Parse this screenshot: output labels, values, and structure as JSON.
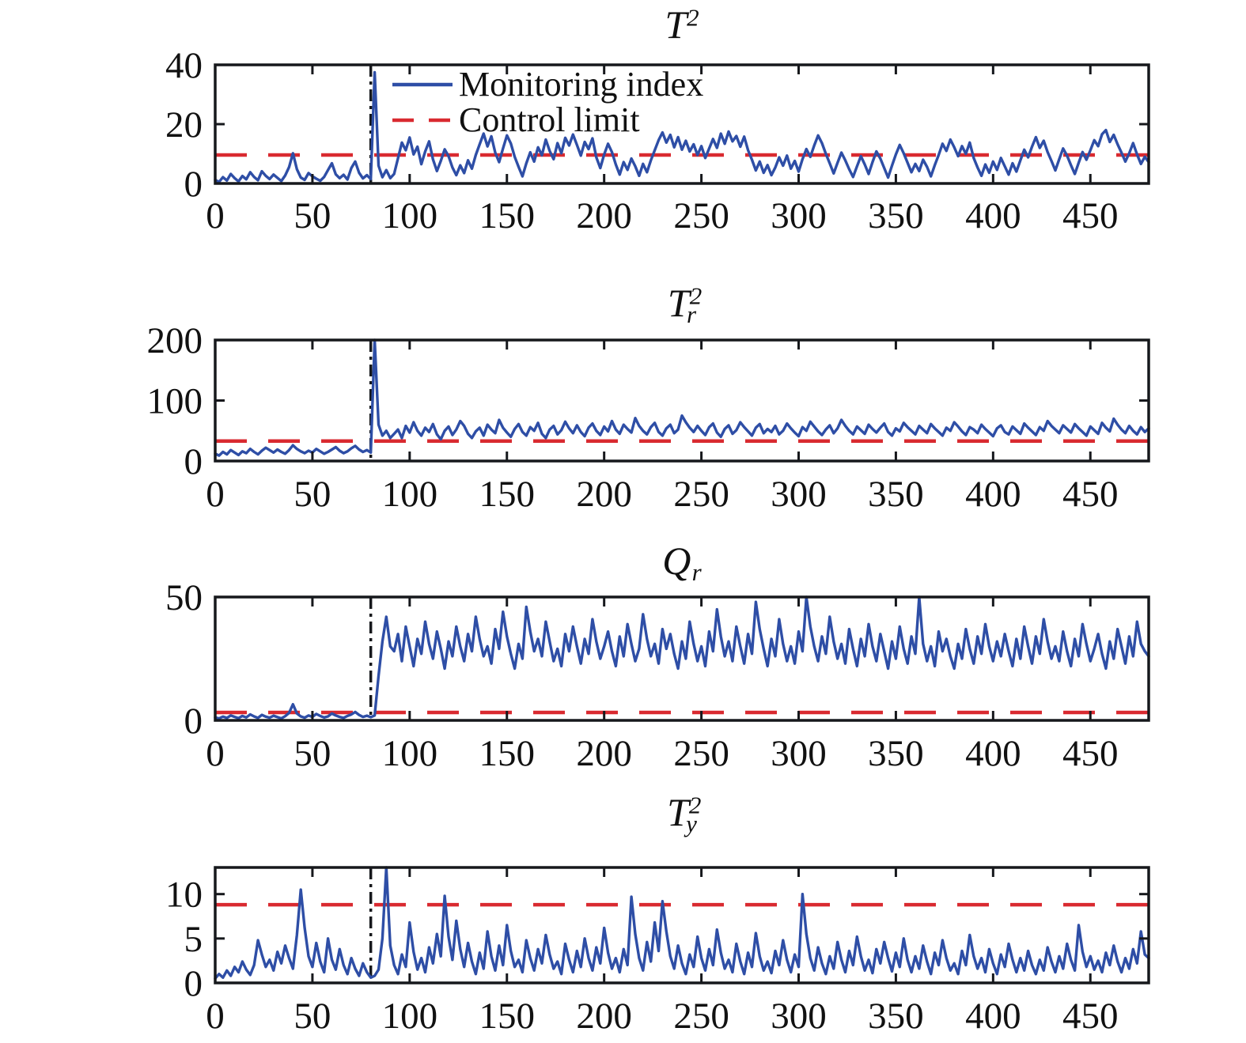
{
  "figure": {
    "background": "#ffffff"
  },
  "colors": {
    "series_blue": "#2e4ea6",
    "limit_red": "#d92a30",
    "axis_black": "#16181c",
    "tick_text": "#111111"
  },
  "legend": {
    "monitoring_label": "Monitoring index",
    "control_label": "Control limit"
  },
  "chart_data": [
    {
      "type": "line",
      "title": "T^2",
      "title_parts": {
        "base": "T",
        "sup": "2",
        "sub": ""
      },
      "xlabel": "",
      "ylabel": "",
      "x_range": [
        0,
        480
      ],
      "x_start": 0,
      "x_step": 2,
      "x_ticks": [
        0,
        50,
        100,
        150,
        200,
        250,
        300,
        350,
        400,
        450
      ],
      "ylim": [
        0,
        40
      ],
      "y_ticks": [
        0,
        20,
        40
      ],
      "control_limit": 9.6,
      "fault_line_x": 80,
      "series_name": "Monitoring index",
      "values": [
        1.2,
        0.5,
        2.1,
        1.0,
        3.2,
        1.8,
        0.7,
        2.5,
        1.4,
        3.8,
        2.2,
        1.1,
        4.1,
        2.6,
        1.5,
        3.0,
        1.9,
        0.8,
        2.7,
        5.5,
        10.2,
        4.8,
        2.0,
        1.2,
        3.5,
        2.4,
        1.6,
        0.9,
        2.2,
        4.5,
        6.8,
        3.1,
        1.8,
        2.9,
        1.3,
        5.2,
        7.4,
        3.6,
        1.7,
        2.8,
        1.5,
        37.5,
        6.0,
        2.1,
        4.5,
        1.8,
        3.2,
        8.5,
        13.8,
        11.2,
        15.5,
        9.8,
        12.4,
        6.5,
        10.8,
        14.2,
        8.1,
        4.2,
        7.6,
        11.5,
        9.2,
        5.4,
        2.8,
        6.1,
        3.5,
        7.8,
        5.0,
        9.6,
        13.2,
        16.8,
        12.5,
        15.9,
        10.4,
        7.2,
        11.8,
        16.2,
        13.5,
        9.0,
        5.6,
        2.4,
        6.8,
        10.5,
        7.4,
        12.2,
        9.5,
        14.8,
        11.0,
        8.2,
        13.6,
        10.2,
        15.4,
        12.8,
        16.5,
        13.0,
        9.4,
        14.0,
        11.6,
        15.2,
        8.8,
        5.2,
        9.8,
        13.4,
        10.6,
        6.4,
        3.0,
        7.2,
        4.6,
        8.4,
        5.8,
        2.6,
        6.6,
        3.8,
        7.8,
        11.2,
        14.6,
        17.2,
        13.8,
        16.4,
        12.2,
        15.6,
        11.4,
        14.4,
        10.8,
        13.2,
        9.6,
        12.6,
        8.6,
        11.8,
        15.0,
        12.0,
        16.8,
        13.4,
        17.5,
        14.2,
        16.0,
        12.4,
        15.8,
        11.2,
        8.0,
        4.4,
        7.4,
        3.6,
        6.2,
        2.8,
        5.4,
        8.8,
        6.0,
        9.4,
        5.0,
        7.6,
        4.0,
        8.2,
        11.6,
        9.0,
        12.8,
        16.2,
        13.6,
        10.0,
        6.8,
        3.4,
        7.0,
        10.4,
        7.8,
        4.8,
        2.2,
        5.8,
        9.2,
        6.4,
        3.2,
        7.2,
        10.8,
        8.4,
        5.2,
        2.0,
        6.0,
        9.8,
        13.0,
        10.2,
        7.0,
        3.8,
        6.6,
        4.2,
        8.0,
        5.6,
        2.4,
        6.2,
        9.6,
        13.4,
        11.0,
        14.8,
        12.2,
        9.2,
        12.6,
        10.0,
        13.8,
        8.6,
        5.4,
        2.6,
        6.4,
        3.6,
        7.4,
        4.6,
        8.6,
        5.8,
        3.0,
        6.8,
        4.0,
        7.8,
        11.4,
        8.8,
        12.4,
        15.6,
        12.0,
        14.4,
        10.6,
        7.6,
        4.4,
        8.2,
        11.8,
        9.4,
        6.2,
        3.2,
        7.0,
        10.6,
        8.0,
        11.2,
        14.6,
        12.6,
        16.6,
        18.0,
        14.0,
        16.4,
        13.2,
        10.4,
        7.4,
        10.2,
        13.6,
        9.8,
        6.6,
        9.0,
        7.2
      ]
    },
    {
      "type": "line",
      "title": "T_r^2",
      "title_parts": {
        "base": "T",
        "sup": "2",
        "sub": "r"
      },
      "xlabel": "",
      "ylabel": "",
      "x_range": [
        0,
        480
      ],
      "x_start": 0,
      "x_step": 2,
      "x_ticks": [
        0,
        50,
        100,
        150,
        200,
        250,
        300,
        350,
        400,
        450
      ],
      "ylim": [
        0,
        200
      ],
      "y_ticks": [
        0,
        100,
        200
      ],
      "control_limit": 33,
      "fault_line_x": 80,
      "series_name": "Monitoring index",
      "values": [
        12,
        9,
        15,
        11,
        18,
        14,
        10,
        16,
        13,
        20,
        15,
        11,
        17,
        22,
        18,
        14,
        19,
        15,
        12,
        18,
        26,
        20,
        16,
        13,
        17,
        14,
        20,
        16,
        12,
        15,
        19,
        23,
        17,
        13,
        16,
        21,
        25,
        19,
        15,
        18,
        14,
        200,
        60,
        42,
        50,
        38,
        45,
        52,
        38,
        58,
        47,
        64,
        50,
        42,
        55,
        48,
        61,
        44,
        36,
        50,
        57,
        43,
        52,
        66,
        58,
        45,
        38,
        49,
        55,
        42,
        60,
        52,
        46,
        68,
        55,
        47,
        40,
        53,
        61,
        48,
        42,
        56,
        50,
        63,
        45,
        38,
        52,
        58,
        44,
        51,
        65,
        54,
        46,
        59,
        48,
        41,
        55,
        62,
        50,
        43,
        57,
        49,
        66,
        52,
        45,
        60,
        53,
        47,
        71,
        58,
        50,
        44,
        56,
        63,
        48,
        42,
        54,
        60,
        46,
        52,
        75,
        64,
        55,
        48,
        58,
        50,
        43,
        56,
        62,
        47,
        40,
        53,
        59,
        45,
        51,
        64,
        56,
        49,
        42,
        55,
        61,
        46,
        53,
        48,
        58,
        44,
        50,
        62,
        54,
        47,
        41,
        56,
        50,
        65,
        57,
        49,
        43,
        52,
        59,
        46,
        54,
        68,
        58,
        50,
        44,
        57,
        51,
        45,
        60,
        53,
        47,
        55,
        62,
        48,
        42,
        54,
        49,
        63,
        56,
        50,
        44,
        58,
        52,
        46,
        61,
        54,
        48,
        42,
        55,
        50,
        64,
        57,
        49,
        43,
        56,
        52,
        46,
        60,
        53,
        47,
        41,
        54,
        59,
        48,
        44,
        57,
        51,
        45,
        62,
        55,
        49,
        43,
        56,
        50,
        66,
        58,
        52,
        46,
        59,
        53,
        47,
        61,
        54,
        48,
        42,
        57,
        51,
        45,
        63,
        55,
        49,
        70,
        60,
        52,
        46,
        58,
        50,
        44,
        56,
        48,
        54
      ]
    },
    {
      "type": "line",
      "title": "Q_r",
      "title_parts": {
        "base": "Q",
        "sup": "",
        "sub": "r"
      },
      "xlabel": "",
      "ylabel": "",
      "x_range": [
        0,
        480
      ],
      "x_start": 0,
      "x_step": 2,
      "x_ticks": [
        0,
        50,
        100,
        150,
        200,
        250,
        300,
        350,
        400,
        450
      ],
      "ylim": [
        0,
        50
      ],
      "y_ticks": [
        0,
        50
      ],
      "control_limit": 3.2,
      "fault_line_x": 80,
      "series_name": "Monitoring index",
      "values": [
        1.2,
        0.8,
        1.5,
        1.0,
        2.0,
        1.4,
        0.9,
        1.8,
        1.2,
        2.4,
        1.6,
        1.0,
        2.2,
        1.5,
        1.1,
        1.9,
        1.3,
        0.8,
        1.7,
        3.0,
        6.5,
        2.8,
        1.6,
        1.1,
        2.0,
        1.4,
        2.6,
        1.8,
        1.2,
        1.6,
        2.8,
        2.0,
        1.4,
        1.0,
        1.8,
        2.4,
        3.4,
        2.2,
        1.4,
        1.9,
        1.3,
        2.0,
        18,
        32,
        42,
        30,
        28,
        35,
        24,
        38,
        30,
        22,
        33,
        27,
        40,
        31,
        25,
        36,
        29,
        21,
        32,
        26,
        38,
        30,
        24,
        35,
        28,
        42,
        33,
        26,
        30,
        23,
        37,
        29,
        44,
        34,
        27,
        21,
        31,
        25,
        46,
        36,
        28,
        33,
        26,
        40,
        32,
        24,
        29,
        22,
        35,
        28,
        38,
        30,
        23,
        33,
        27,
        41,
        32,
        25,
        30,
        36,
        28,
        22,
        34,
        26,
        39,
        31,
        24,
        29,
        43,
        33,
        26,
        31,
        23,
        37,
        29,
        35,
        27,
        21,
        32,
        25,
        40,
        31,
        24,
        30,
        22,
        36,
        28,
        45,
        34,
        26,
        32,
        24,
        38,
        30,
        23,
        35,
        27,
        48,
        37,
        29,
        22,
        33,
        26,
        41,
        31,
        24,
        30,
        23,
        36,
        28,
        50,
        38,
        30,
        24,
        34,
        27,
        42,
        32,
        25,
        31,
        23,
        37,
        29,
        22,
        33,
        26,
        39,
        30,
        24,
        35,
        28,
        21,
        32,
        25,
        38,
        29,
        23,
        34,
        27,
        50,
        31,
        24,
        30,
        22,
        36,
        28,
        33,
        26,
        21,
        31,
        25,
        37,
        29,
        23,
        34,
        27,
        39,
        30,
        24,
        32,
        26,
        35,
        28,
        22,
        33,
        25,
        38,
        30,
        23,
        34,
        27,
        41,
        32,
        25,
        30,
        24,
        36,
        28,
        22,
        33,
        26,
        39,
        31,
        24,
        29,
        35,
        27,
        21,
        32,
        25,
        37,
        30,
        23,
        34,
        26,
        40,
        31,
        28,
        26
      ]
    },
    {
      "type": "line",
      "title": "T_y^2",
      "title_parts": {
        "base": "T",
        "sup": "2",
        "sub": "y"
      },
      "xlabel": "",
      "ylabel": "",
      "x_range": [
        0,
        480
      ],
      "x_start": 0,
      "x_step": 2,
      "x_ticks": [
        0,
        50,
        100,
        150,
        200,
        250,
        300,
        350,
        400,
        450
      ],
      "ylim": [
        0,
        13
      ],
      "y_ticks": [
        0,
        5,
        10
      ],
      "control_limit": 8.8,
      "fault_line_x": 80,
      "series_name": "Monitoring index",
      "values": [
        0.5,
        1.0,
        0.6,
        1.4,
        0.8,
        1.8,
        1.2,
        2.4,
        1.5,
        0.9,
        2.0,
        4.8,
        3.2,
        1.8,
        2.6,
        1.4,
        3.5,
        2.2,
        4.2,
        2.8,
        1.6,
        5.4,
        10.5,
        6.2,
        3.0,
        1.8,
        4.5,
        2.4,
        1.2,
        5.0,
        2.6,
        1.5,
        3.8,
        2.0,
        1.0,
        2.8,
        1.6,
        0.8,
        2.2,
        1.2,
        0.6,
        0.8,
        1.5,
        5.0,
        13.0,
        4.2,
        2.0,
        1.0,
        3.2,
        1.8,
        6.8,
        3.5,
        1.5,
        2.8,
        1.2,
        4.0,
        2.2,
        5.5,
        3.0,
        9.8,
        5.2,
        2.6,
        7.0,
        3.8,
        1.8,
        4.5,
        2.4,
        1.0,
        3.4,
        1.6,
        5.8,
        3.0,
        1.4,
        4.2,
        2.0,
        6.5,
        3.6,
        1.8,
        2.6,
        1.2,
        4.8,
        2.8,
        1.4,
        3.8,
        2.2,
        5.4,
        3.2,
        1.6,
        2.4,
        1.0,
        4.4,
        2.6,
        1.2,
        3.6,
        1.8,
        5.0,
        2.8,
        1.4,
        4.0,
        2.2,
        6.2,
        3.4,
        1.6,
        2.8,
        1.2,
        3.8,
        2.0,
        9.7,
        5.5,
        2.8,
        1.4,
        4.6,
        2.4,
        6.8,
        3.6,
        9.2,
        5.8,
        3.0,
        1.6,
        4.2,
        2.2,
        1.0,
        3.2,
        1.8,
        5.2,
        2.8,
        1.4,
        3.8,
        2.0,
        6.0,
        3.4,
        1.6,
        2.6,
        1.2,
        4.4,
        2.4,
        1.0,
        3.4,
        1.8,
        5.6,
        3.0,
        1.4,
        2.4,
        1.1,
        3.6,
        2.0,
        4.8,
        2.6,
        1.2,
        3.2,
        1.8,
        10.0,
        5.5,
        2.8,
        1.4,
        4.0,
        2.2,
        1.0,
        3.0,
        1.6,
        4.6,
        2.6,
        1.2,
        3.6,
        2.0,
        5.2,
        3.0,
        1.4,
        2.6,
        1.1,
        3.8,
        2.2,
        4.6,
        2.8,
        1.3,
        3.4,
        1.8,
        5.0,
        2.6,
        1.2,
        3.0,
        1.6,
        4.2,
        2.4,
        1.0,
        3.4,
        2.0,
        4.8,
        2.8,
        1.4,
        2.2,
        1.0,
        3.6,
        2.0,
        5.4,
        3.0,
        1.6,
        2.8,
        1.2,
        3.8,
        2.2,
        1.0,
        3.2,
        1.8,
        4.4,
        2.6,
        1.2,
        2.8,
        1.4,
        3.6,
        2.0,
        1.0,
        2.6,
        1.4,
        4.0,
        2.4,
        1.2,
        3.0,
        1.6,
        4.4,
        2.6,
        1.4,
        6.5,
        3.5,
        1.8,
        3.0,
        1.5,
        2.5,
        1.2,
        3.4,
        2.0,
        4.2,
        2.4,
        1.2,
        2.8,
        1.6,
        3.8,
        2.2,
        5.8,
        3.2,
        2.8
      ]
    }
  ]
}
